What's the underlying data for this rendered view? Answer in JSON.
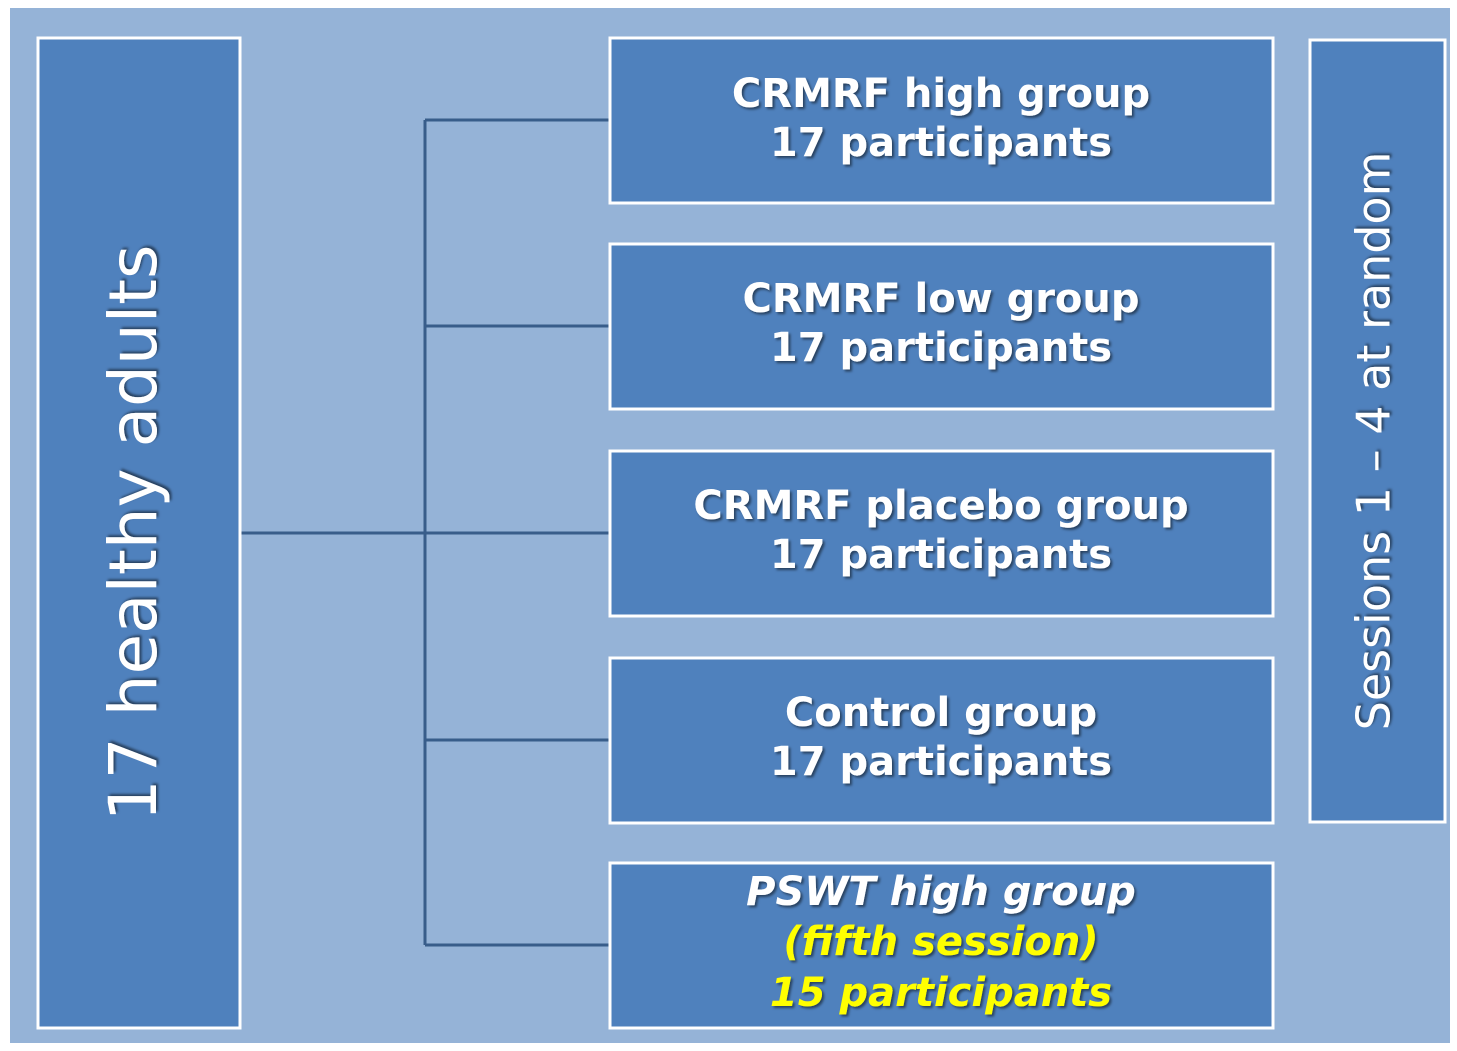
{
  "source": {
    "label": "17 healthy adults"
  },
  "groups": [
    {
      "lines": [
        "CRMRF high group",
        "17 participants"
      ]
    },
    {
      "lines": [
        "CRMRF low group",
        "17 participants"
      ]
    },
    {
      "lines": [
        "CRMRF placebo group",
        "17 participants"
      ]
    },
    {
      "lines": [
        "Control group",
        "17 participants"
      ]
    },
    {
      "lines": [
        "PSWT high group",
        "(fifth session)",
        "15 participants"
      ]
    }
  ],
  "sessions": {
    "label": "Sessions 1 – 4 at random"
  }
}
